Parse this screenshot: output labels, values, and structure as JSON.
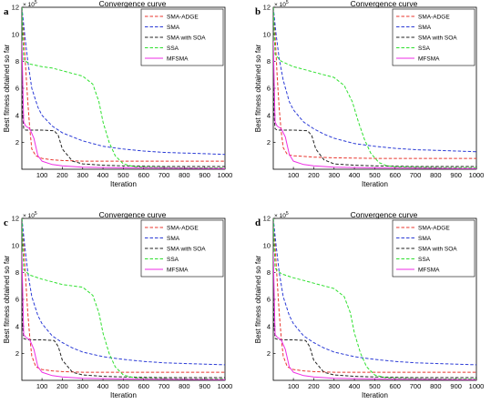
{
  "chart_data": [
    {
      "panel_letter": "a",
      "type": "line",
      "title": "Convergence curve",
      "xlabel": "Iteration",
      "ylabel": "Best fitness obtained so far",
      "y_exponent_label": "× 10",
      "y_exponent": "5",
      "xlim": [
        1,
        1000
      ],
      "ylim": [
        0,
        12
      ],
      "x_ticks": [
        100,
        200,
        300,
        400,
        500,
        600,
        700,
        800,
        900,
        1000
      ],
      "y_ticks": [
        2,
        4,
        6,
        8,
        10,
        12
      ],
      "legend_position": "top-right",
      "series": [
        {
          "name": "SMA-ADGE",
          "color": "#e8362e",
          "dash": "dashed",
          "x": [
            1,
            10,
            20,
            30,
            40,
            50,
            70,
            100,
            150,
            200,
            300,
            500,
            700,
            1000
          ],
          "y": [
            12,
            10,
            7.5,
            5.0,
            3.0,
            1.5,
            1.0,
            0.8,
            0.7,
            0.65,
            0.6,
            0.6,
            0.6,
            0.6
          ]
        },
        {
          "name": "SMA",
          "color": "#2b3bd6",
          "dash": "dashed",
          "x": [
            1,
            15,
            30,
            50,
            80,
            100,
            150,
            200,
            250,
            300,
            400,
            500,
            600,
            700,
            800,
            900,
            1000
          ],
          "y": [
            12,
            10,
            8.0,
            6.0,
            4.6,
            4.0,
            3.2,
            2.7,
            2.4,
            2.1,
            1.7,
            1.5,
            1.35,
            1.25,
            1.2,
            1.15,
            1.1
          ]
        },
        {
          "name": "SMA with SOA",
          "color": "#222222",
          "dash": "dashed",
          "x": [
            1,
            5,
            10,
            20,
            40,
            100,
            160,
            180,
            200,
            250,
            300,
            400,
            500,
            700,
            1000
          ],
          "y": [
            8.8,
            4.0,
            3.0,
            2.9,
            2.9,
            2.9,
            2.85,
            2.5,
            1.5,
            0.6,
            0.4,
            0.3,
            0.25,
            0.2,
            0.2
          ]
        },
        {
          "name": "SSA",
          "color": "#2ee02e",
          "dash": "dashed",
          "x": [
            1,
            10,
            40,
            100,
            150,
            200,
            250,
            300,
            350,
            380,
            400,
            430,
            460,
            500,
            550,
            600,
            700,
            800,
            1000
          ],
          "y": [
            12,
            8.1,
            7.8,
            7.6,
            7.5,
            7.3,
            7.1,
            6.9,
            6.3,
            5.0,
            3.5,
            2.0,
            1.0,
            0.4,
            0.2,
            0.15,
            0.12,
            0.1,
            0.1
          ]
        },
        {
          "name": "MFSMA",
          "color": "#ee2ee4",
          "dash": "solid",
          "x": [
            1,
            10,
            20,
            40,
            60,
            80,
            100,
            150,
            200,
            300,
            500,
            1000
          ],
          "y": [
            9.5,
            3.5,
            3.2,
            3.0,
            2.3,
            1.0,
            0.6,
            0.35,
            0.25,
            0.15,
            0.1,
            0.05
          ]
        }
      ]
    },
    {
      "panel_letter": "b",
      "type": "line",
      "title": "Convergence curve",
      "xlabel": "Iteration",
      "ylabel": "Best fitness obtained so far",
      "y_exponent_label": "× 10",
      "y_exponent": "5",
      "xlim": [
        1,
        1000
      ],
      "ylim": [
        0,
        12
      ],
      "x_ticks": [
        100,
        200,
        300,
        400,
        500,
        600,
        700,
        800,
        900,
        1000
      ],
      "y_ticks": [
        2,
        4,
        6,
        8,
        10,
        12
      ],
      "legend_position": "top-right",
      "series": [
        {
          "name": "SMA-ADGE",
          "color": "#e8362e",
          "dash": "dashed",
          "x": [
            1,
            10,
            20,
            30,
            40,
            50,
            70,
            100,
            150,
            200,
            300,
            500,
            700,
            1000
          ],
          "y": [
            12,
            10,
            7.0,
            4.5,
            2.8,
            1.6,
            1.1,
            1.0,
            0.95,
            0.9,
            0.85,
            0.8,
            0.8,
            0.8
          ]
        },
        {
          "name": "SMA",
          "color": "#2b3bd6",
          "dash": "dashed",
          "x": [
            1,
            15,
            30,
            50,
            80,
            100,
            150,
            200,
            250,
            300,
            400,
            500,
            600,
            700,
            800,
            900,
            1000
          ],
          "y": [
            12,
            10,
            8.2,
            6.6,
            5.0,
            4.4,
            3.5,
            3.0,
            2.6,
            2.3,
            1.9,
            1.7,
            1.55,
            1.45,
            1.4,
            1.35,
            1.3
          ]
        },
        {
          "name": "SMA with SOA",
          "color": "#222222",
          "dash": "dashed",
          "x": [
            1,
            5,
            10,
            20,
            40,
            100,
            170,
            190,
            210,
            250,
            300,
            400,
            500,
            700,
            1000
          ],
          "y": [
            9.0,
            4.0,
            3.0,
            2.9,
            2.9,
            2.9,
            2.85,
            2.5,
            1.5,
            0.7,
            0.4,
            0.3,
            0.25,
            0.2,
            0.2
          ]
        },
        {
          "name": "SSA",
          "color": "#2ee02e",
          "dash": "dashed",
          "x": [
            1,
            10,
            40,
            100,
            150,
            200,
            250,
            300,
            350,
            390,
            420,
            450,
            480,
            520,
            560,
            600,
            700,
            800,
            1000
          ],
          "y": [
            12,
            8.5,
            8.0,
            7.6,
            7.4,
            7.2,
            7.0,
            6.8,
            6.2,
            5.0,
            3.5,
            2.2,
            1.2,
            0.5,
            0.25,
            0.18,
            0.15,
            0.12,
            0.12
          ]
        },
        {
          "name": "MFSMA",
          "color": "#ee2ee4",
          "dash": "solid",
          "x": [
            1,
            10,
            20,
            40,
            60,
            80,
            100,
            150,
            200,
            300,
            500,
            1000
          ],
          "y": [
            9.5,
            3.5,
            3.2,
            3.0,
            2.4,
            1.1,
            0.6,
            0.35,
            0.25,
            0.15,
            0.1,
            0.05
          ]
        }
      ]
    },
    {
      "panel_letter": "c",
      "type": "line",
      "title": "Convergence curve",
      "xlabel": "Iteration",
      "ylabel": "Best fitness obtained so far",
      "y_exponent_label": "× 10",
      "y_exponent": "5",
      "xlim": [
        1,
        1000
      ],
      "ylim": [
        0,
        12
      ],
      "x_ticks": [
        100,
        200,
        300,
        400,
        500,
        600,
        700,
        800,
        900,
        1000
      ],
      "y_ticks": [
        2,
        4,
        6,
        8,
        10,
        12
      ],
      "legend_position": "top-right",
      "series": [
        {
          "name": "SMA-ADGE",
          "color": "#e8362e",
          "dash": "dashed",
          "x": [
            1,
            10,
            20,
            30,
            40,
            50,
            70,
            100,
            150,
            200,
            300,
            500,
            700,
            1000
          ],
          "y": [
            12,
            10,
            7.5,
            5.0,
            3.2,
            1.8,
            1.0,
            0.8,
            0.7,
            0.65,
            0.6,
            0.6,
            0.6,
            0.6
          ]
        },
        {
          "name": "SMA",
          "color": "#2b3bd6",
          "dash": "dashed",
          "x": [
            1,
            15,
            30,
            50,
            80,
            100,
            150,
            200,
            250,
            300,
            400,
            500,
            600,
            700,
            800,
            900,
            1000
          ],
          "y": [
            12,
            10,
            8.0,
            6.2,
            4.8,
            4.2,
            3.3,
            2.8,
            2.4,
            2.1,
            1.75,
            1.55,
            1.4,
            1.3,
            1.25,
            1.2,
            1.15
          ]
        },
        {
          "name": "SMA with SOA",
          "color": "#222222",
          "dash": "dashed",
          "x": [
            1,
            5,
            10,
            20,
            40,
            100,
            160,
            180,
            200,
            250,
            300,
            400,
            500,
            700,
            1000
          ],
          "y": [
            8.7,
            4.0,
            3.1,
            3.05,
            3.0,
            3.0,
            2.95,
            2.5,
            1.5,
            0.6,
            0.4,
            0.3,
            0.25,
            0.2,
            0.2
          ]
        },
        {
          "name": "SSA",
          "color": "#2ee02e",
          "dash": "dashed",
          "x": [
            1,
            10,
            40,
            100,
            150,
            200,
            250,
            300,
            350,
            380,
            400,
            430,
            460,
            500,
            550,
            600,
            700,
            800,
            1000
          ],
          "y": [
            12,
            8.2,
            7.8,
            7.5,
            7.3,
            7.1,
            7.0,
            6.9,
            6.3,
            5.0,
            3.5,
            2.0,
            1.0,
            0.4,
            0.2,
            0.15,
            0.12,
            0.1,
            0.1
          ]
        },
        {
          "name": "MFSMA",
          "color": "#ee2ee4",
          "dash": "solid",
          "x": [
            1,
            10,
            20,
            40,
            60,
            80,
            100,
            150,
            200,
            300,
            500,
            1000
          ],
          "y": [
            9.5,
            3.4,
            3.2,
            3.0,
            2.3,
            1.0,
            0.6,
            0.35,
            0.25,
            0.15,
            0.1,
            0.05
          ]
        }
      ]
    },
    {
      "panel_letter": "d",
      "type": "line",
      "title": "Convergence curve",
      "xlabel": "Iteration",
      "ylabel": "Best fitness obtained so far",
      "y_exponent_label": "× 10",
      "y_exponent": "5",
      "xlim": [
        1,
        1000
      ],
      "ylim": [
        0,
        12
      ],
      "x_ticks": [
        100,
        200,
        300,
        400,
        500,
        600,
        700,
        800,
        900,
        1000
      ],
      "y_ticks": [
        2,
        4,
        6,
        8,
        10,
        12
      ],
      "legend_position": "top-right",
      "series": [
        {
          "name": "SMA-ADGE",
          "color": "#e8362e",
          "dash": "dashed",
          "x": [
            1,
            10,
            20,
            30,
            40,
            50,
            70,
            100,
            150,
            200,
            300,
            500,
            700,
            1000
          ],
          "y": [
            12,
            10,
            7.5,
            5.0,
            3.2,
            1.8,
            1.0,
            0.8,
            0.7,
            0.65,
            0.6,
            0.6,
            0.6,
            0.6
          ]
        },
        {
          "name": "SMA",
          "color": "#2b3bd6",
          "dash": "dashed",
          "x": [
            1,
            15,
            30,
            50,
            80,
            100,
            150,
            200,
            250,
            300,
            400,
            500,
            600,
            700,
            800,
            900,
            1000
          ],
          "y": [
            12,
            10,
            8.0,
            6.2,
            4.8,
            4.2,
            3.3,
            2.8,
            2.4,
            2.1,
            1.75,
            1.55,
            1.4,
            1.3,
            1.25,
            1.2,
            1.15
          ]
        },
        {
          "name": "SMA with SOA",
          "color": "#222222",
          "dash": "dashed",
          "x": [
            1,
            5,
            10,
            20,
            40,
            100,
            160,
            180,
            200,
            250,
            300,
            400,
            500,
            700,
            1000
          ],
          "y": [
            8.7,
            4.0,
            3.1,
            3.05,
            3.0,
            3.0,
            2.95,
            2.5,
            1.5,
            0.6,
            0.4,
            0.3,
            0.25,
            0.2,
            0.2
          ]
        },
        {
          "name": "SSA",
          "color": "#2ee02e",
          "dash": "dashed",
          "x": [
            1,
            10,
            40,
            100,
            150,
            200,
            250,
            300,
            350,
            380,
            400,
            430,
            460,
            500,
            550,
            600,
            700,
            800,
            1000
          ],
          "y": [
            12,
            8.3,
            7.9,
            7.6,
            7.4,
            7.2,
            7.0,
            6.8,
            6.2,
            5.0,
            3.5,
            2.0,
            1.0,
            0.4,
            0.2,
            0.15,
            0.12,
            0.1,
            0.1
          ]
        },
        {
          "name": "MFSMA",
          "color": "#ee2ee4",
          "dash": "solid",
          "x": [
            1,
            10,
            20,
            40,
            60,
            80,
            100,
            150,
            200,
            300,
            500,
            1000
          ],
          "y": [
            9.5,
            3.4,
            3.2,
            3.0,
            2.3,
            1.0,
            0.6,
            0.35,
            0.25,
            0.15,
            0.1,
            0.05
          ]
        }
      ]
    }
  ]
}
